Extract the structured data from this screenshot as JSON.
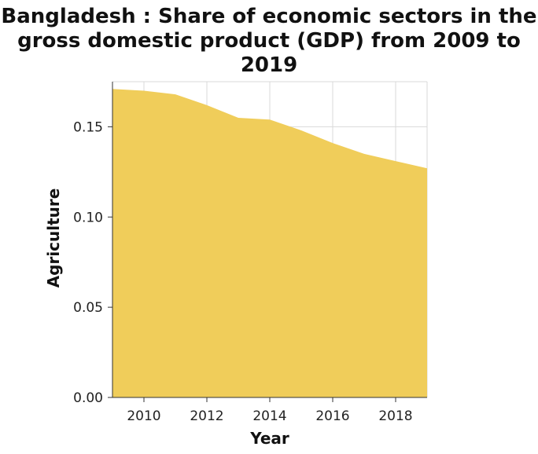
{
  "chart_data": {
    "type": "area",
    "title": "Bangladesh : Share of economic sectors in the gross domestic product (GDP) from 2009 to 2019",
    "xlabel": "Year",
    "ylabel": "Agriculture",
    "x": [
      2009,
      2010,
      2011,
      2012,
      2013,
      2014,
      2015,
      2016,
      2017,
      2018,
      2019
    ],
    "series": [
      {
        "values": [
          0.171,
          0.17,
          0.168,
          0.162,
          0.155,
          0.154,
          0.148,
          0.141,
          0.135,
          0.131,
          0.127
        ]
      }
    ],
    "xlim": [
      2009,
      2019
    ],
    "ylim": [
      0,
      0.175
    ],
    "x_ticks": [
      "2010",
      "2012",
      "2014",
      "2016",
      "2018"
    ],
    "y_ticks": [
      "0.00",
      "0.05",
      "0.10",
      "0.15"
    ],
    "grid": true,
    "legend": "none",
    "fill_color": "#f0cd5a",
    "grid_color": "#d9d9d9"
  }
}
